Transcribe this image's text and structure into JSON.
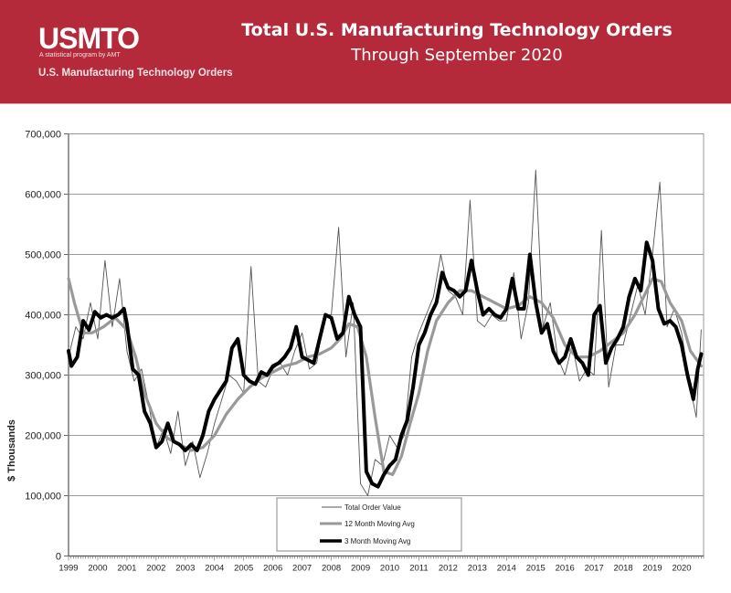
{
  "header": {
    "logo_text": "USMTO",
    "logo_tagline": "A statistical program by AMT",
    "program_name": "U.S. Manufacturing Technology Orders",
    "title": "Total U.S. Manufacturing Technology Orders",
    "subtitle": "Through September 2020",
    "background_color": "#B52A3A"
  },
  "chart_data": {
    "type": "line",
    "title": "Total U.S. Manufacturing Technology Orders",
    "subtitle": "Through September 2020",
    "xlabel": "",
    "ylabel": "$ Thousands",
    "xlim": [
      1999.0,
      2020.75
    ],
    "ylim": [
      0,
      700000
    ],
    "y_ticks": [
      0,
      100000,
      200000,
      300000,
      400000,
      500000,
      600000,
      700000
    ],
    "y_tick_labels": [
      "0",
      "100,000",
      "200,000",
      "300,000",
      "400,000",
      "500,000",
      "600,000",
      "700,000"
    ],
    "x_tick_labels": [
      "1999",
      "2000",
      "2001",
      "2002",
      "2003",
      "2004",
      "2005",
      "2006",
      "2007",
      "2008",
      "2009",
      "2010",
      "2011",
      "2012",
      "2013",
      "2014",
      "2015",
      "2016",
      "2017",
      "2018",
      "2019",
      "2020"
    ],
    "grid": "horizontal",
    "legend_position": "bottom-center",
    "series": [
      {
        "name": "Total Order Value",
        "style": "thin",
        "color": "#555555",
        "x": [
          1999.0,
          1999.25,
          1999.5,
          1999.75,
          2000.0,
          2000.25,
          2000.5,
          2000.75,
          2001.0,
          2001.25,
          2001.5,
          2001.75,
          2002.0,
          2002.25,
          2002.5,
          2002.75,
          2003.0,
          2003.25,
          2003.5,
          2003.75,
          2004.0,
          2004.25,
          2004.5,
          2004.75,
          2005.0,
          2005.25,
          2005.5,
          2005.75,
          2006.0,
          2006.25,
          2006.5,
          2006.75,
          2007.0,
          2007.25,
          2007.5,
          2007.75,
          2008.0,
          2008.25,
          2008.5,
          2008.75,
          2009.0,
          2009.25,
          2009.5,
          2009.75,
          2010.0,
          2010.25,
          2010.5,
          2010.75,
          2011.0,
          2011.25,
          2011.5,
          2011.75,
          2012.0,
          2012.25,
          2012.5,
          2012.75,
          2013.0,
          2013.25,
          2013.5,
          2013.75,
          2014.0,
          2014.25,
          2014.5,
          2014.75,
          2015.0,
          2015.25,
          2015.5,
          2015.75,
          2016.0,
          2016.25,
          2016.5,
          2016.75,
          2017.0,
          2017.25,
          2017.5,
          2017.75,
          2018.0,
          2018.25,
          2018.5,
          2018.75,
          2019.0,
          2019.25,
          2019.5,
          2019.75,
          2020.0,
          2020.25,
          2020.5,
          2020.67
        ],
        "values": [
          330000,
          380000,
          360000,
          420000,
          360000,
          490000,
          380000,
          460000,
          340000,
          290000,
          310000,
          250000,
          180000,
          210000,
          170000,
          240000,
          150000,
          190000,
          130000,
          170000,
          220000,
          260000,
          300000,
          290000,
          270000,
          480000,
          290000,
          280000,
          310000,
          320000,
          300000,
          340000,
          370000,
          310000,
          320000,
          400000,
          400000,
          545000,
          330000,
          420000,
          120000,
          100000,
          160000,
          150000,
          200000,
          180000,
          200000,
          330000,
          370000,
          400000,
          430000,
          500000,
          440000,
          430000,
          400000,
          590000,
          390000,
          380000,
          400000,
          390000,
          390000,
          470000,
          360000,
          420000,
          640000,
          380000,
          420000,
          330000,
          300000,
          350000,
          290000,
          310000,
          300000,
          540000,
          280000,
          350000,
          350000,
          400000,
          450000,
          400000,
          500000,
          620000,
          380000,
          410000,
          370000,
          290000,
          230000,
          375000
        ]
      },
      {
        "name": "12 Month Moving Avg",
        "style": "medium",
        "color": "#999999",
        "x": [
          1999.0,
          1999.2,
          1999.5,
          1999.8,
          2000.2,
          2000.6,
          2001.0,
          2001.3,
          2001.6,
          2002.0,
          2002.4,
          2002.8,
          2003.2,
          2003.6,
          2004.0,
          2004.4,
          2004.8,
          2005.2,
          2005.6,
          2006.0,
          2006.4,
          2006.8,
          2007.2,
          2007.6,
          2008.0,
          2008.3,
          2008.6,
          2008.9,
          2009.2,
          2009.5,
          2009.8,
          2010.1,
          2010.4,
          2010.7,
          2011.0,
          2011.3,
          2011.6,
          2012.0,
          2012.4,
          2012.8,
          2013.2,
          2013.6,
          2014.0,
          2014.4,
          2014.8,
          2015.2,
          2015.6,
          2016.0,
          2016.4,
          2016.8,
          2017.2,
          2017.6,
          2018.0,
          2018.4,
          2018.8,
          2019.0,
          2019.3,
          2019.6,
          2020.0,
          2020.3,
          2020.67
        ],
        "values": [
          460000,
          420000,
          370000,
          370000,
          380000,
          395000,
          375000,
          330000,
          270000,
          220000,
          195000,
          185000,
          175000,
          180000,
          200000,
          235000,
          260000,
          280000,
          295000,
          305000,
          315000,
          320000,
          330000,
          335000,
          345000,
          360000,
          385000,
          380000,
          330000,
          230000,
          140000,
          135000,
          165000,
          220000,
          270000,
          340000,
          390000,
          420000,
          440000,
          440000,
          430000,
          420000,
          410000,
          415000,
          430000,
          420000,
          395000,
          350000,
          330000,
          330000,
          340000,
          355000,
          370000,
          400000,
          440000,
          460000,
          455000,
          420000,
          390000,
          340000,
          315000
        ]
      },
      {
        "name": "3 Month Moving Avg",
        "style": "thick",
        "color": "#000000",
        "x": [
          1999.0,
          1999.1,
          1999.3,
          1999.5,
          1999.7,
          1999.9,
          2000.1,
          2000.3,
          2000.5,
          2000.7,
          2000.9,
          2001.0,
          2001.2,
          2001.4,
          2001.6,
          2001.8,
          2002.0,
          2002.2,
          2002.4,
          2002.6,
          2002.8,
          2003.0,
          2003.2,
          2003.4,
          2003.6,
          2003.8,
          2004.0,
          2004.2,
          2004.4,
          2004.6,
          2004.8,
          2005.0,
          2005.2,
          2005.4,
          2005.6,
          2005.8,
          2006.0,
          2006.2,
          2006.4,
          2006.6,
          2006.8,
          2007.0,
          2007.2,
          2007.4,
          2007.6,
          2007.8,
          2008.0,
          2008.2,
          2008.4,
          2008.6,
          2008.8,
          2009.0,
          2009.2,
          2009.4,
          2009.6,
          2009.8,
          2010.0,
          2010.2,
          2010.4,
          2010.6,
          2010.8,
          2011.0,
          2011.2,
          2011.4,
          2011.6,
          2011.8,
          2012.0,
          2012.2,
          2012.4,
          2012.6,
          2012.8,
          2013.0,
          2013.2,
          2013.4,
          2013.6,
          2013.8,
          2014.0,
          2014.2,
          2014.4,
          2014.6,
          2014.8,
          2015.0,
          2015.2,
          2015.4,
          2015.6,
          2015.8,
          2016.0,
          2016.2,
          2016.4,
          2016.6,
          2016.8,
          2017.0,
          2017.2,
          2017.4,
          2017.6,
          2017.8,
          2018.0,
          2018.2,
          2018.4,
          2018.6,
          2018.8,
          2019.0,
          2019.2,
          2019.4,
          2019.6,
          2019.8,
          2020.0,
          2020.2,
          2020.4,
          2020.55,
          2020.67
        ],
        "values": [
          340000,
          315000,
          330000,
          390000,
          375000,
          405000,
          395000,
          400000,
          395000,
          400000,
          410000,
          385000,
          310000,
          300000,
          240000,
          220000,
          180000,
          190000,
          220000,
          190000,
          185000,
          175000,
          185000,
          175000,
          200000,
          240000,
          260000,
          275000,
          290000,
          345000,
          360000,
          300000,
          290000,
          285000,
          305000,
          300000,
          315000,
          320000,
          330000,
          345000,
          380000,
          330000,
          325000,
          320000,
          360000,
          400000,
          395000,
          360000,
          370000,
          430000,
          400000,
          380000,
          140000,
          120000,
          115000,
          135000,
          150000,
          160000,
          200000,
          225000,
          280000,
          350000,
          370000,
          400000,
          420000,
          470000,
          445000,
          440000,
          430000,
          440000,
          490000,
          440000,
          400000,
          410000,
          400000,
          395000,
          410000,
          460000,
          410000,
          410000,
          500000,
          420000,
          370000,
          385000,
          340000,
          320000,
          330000,
          360000,
          330000,
          320000,
          300000,
          400000,
          415000,
          320000,
          345000,
          360000,
          380000,
          430000,
          460000,
          440000,
          520000,
          490000,
          410000,
          385000,
          390000,
          380000,
          350000,
          300000,
          260000,
          310000,
          335000
        ]
      }
    ]
  }
}
